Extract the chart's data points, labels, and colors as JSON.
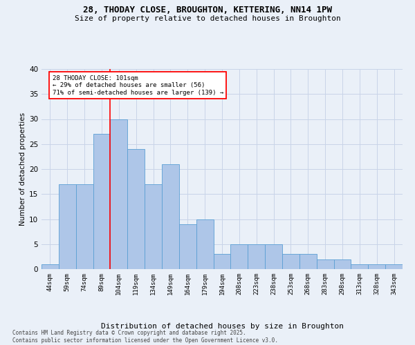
{
  "title_line1": "28, THODAY CLOSE, BROUGHTON, KETTERING, NN14 1PW",
  "title_line2": "Size of property relative to detached houses in Broughton",
  "xlabel": "Distribution of detached houses by size in Broughton",
  "ylabel": "Number of detached properties",
  "footer_line1": "Contains HM Land Registry data © Crown copyright and database right 2025.",
  "footer_line2": "Contains public sector information licensed under the Open Government Licence v3.0.",
  "annotation_line1": "28 THODAY CLOSE: 101sqm",
  "annotation_line2": "← 29% of detached houses are smaller (56)",
  "annotation_line3": "71% of semi-detached houses are larger (139) →",
  "bin_labels": [
    "44sqm",
    "59sqm",
    "74sqm",
    "89sqm",
    "104sqm",
    "119sqm",
    "134sqm",
    "149sqm",
    "164sqm",
    "179sqm",
    "194sqm",
    "208sqm",
    "223sqm",
    "238sqm",
    "253sqm",
    "268sqm",
    "283sqm",
    "298sqm",
    "313sqm",
    "328sqm",
    "343sqm"
  ],
  "bar_values": [
    1,
    17,
    17,
    27,
    30,
    24,
    17,
    21,
    9,
    10,
    3,
    5,
    5,
    5,
    3,
    3,
    2,
    2,
    1,
    1,
    1
  ],
  "bar_color": "#aec6e8",
  "bar_edge_color": "#5a9fd4",
  "grid_color": "#c8d4e8",
  "background_color": "#eaf0f8",
  "vline_color": "red",
  "ylim": [
    0,
    40
  ],
  "yticks": [
    0,
    5,
    10,
    15,
    20,
    25,
    30,
    35,
    40
  ]
}
